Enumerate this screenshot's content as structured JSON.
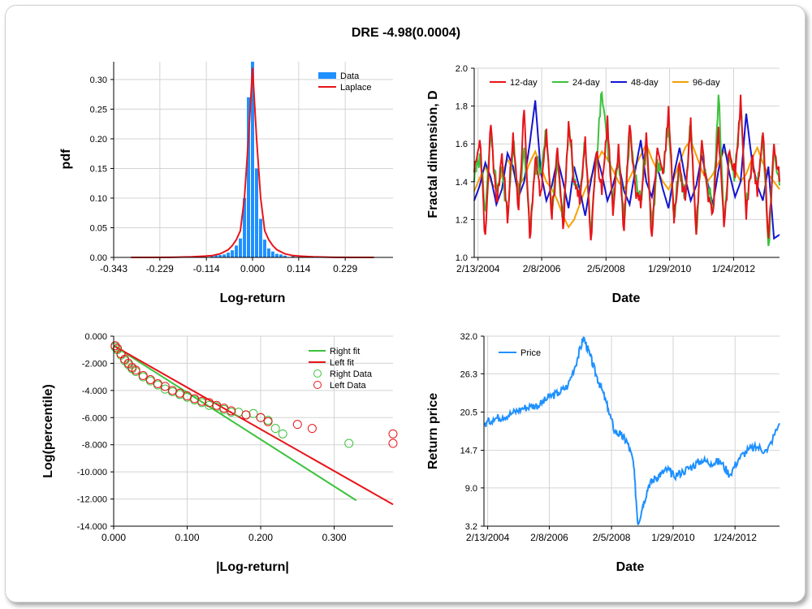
{
  "title": "DRE -4.98(0.0004)",
  "colors": {
    "grid": "#d3d3d3",
    "bar": "#1e90ff",
    "laplace": "#e8141a",
    "s12": "#e8141a",
    "s24": "#3cc23c",
    "s48": "#1414d2",
    "s96": "#f5a000",
    "right": "#3cc23c",
    "left": "#e8141a",
    "price": "#1e90ff"
  },
  "chart_data": [
    {
      "type": "bar",
      "ylabel": "pdf",
      "xlabel": "Log-return",
      "xlim": [
        -0.343,
        0.343
      ],
      "ylim": [
        0,
        0.33
      ],
      "xticks": [
        "-0.343",
        "-0.229",
        "-0.114",
        "0.000",
        "0.114",
        "0.229"
      ],
      "yticks": [
        "0.00",
        "0.05",
        "0.10",
        "0.15",
        "0.20",
        "0.25",
        "0.30"
      ],
      "legend": [
        "Data",
        "Laplace"
      ],
      "legend_position": "top-right",
      "series": [
        {
          "name": "Data",
          "x": [
            -0.2,
            -0.18,
            -0.16,
            -0.14,
            -0.12,
            -0.1,
            -0.09,
            -0.08,
            -0.07,
            -0.06,
            -0.05,
            -0.04,
            -0.03,
            -0.02,
            -0.01,
            0.0,
            0.01,
            0.02,
            0.03,
            0.04,
            0.05,
            0.06,
            0.07,
            0.08,
            0.1,
            0.12,
            0.14,
            0.16,
            0.2
          ],
          "values": [
            0.001,
            0.001,
            0.001,
            0.002,
            0.002,
            0.003,
            0.004,
            0.004,
            0.005,
            0.008,
            0.012,
            0.02,
            0.032,
            0.1,
            0.27,
            0.33,
            0.15,
            0.065,
            0.03,
            0.015,
            0.01,
            0.006,
            0.005,
            0.003,
            0.002,
            0.002,
            0.001,
            0.001,
            0.001
          ]
        },
        {
          "name": "Laplace",
          "x": [
            -0.3,
            -0.25,
            -0.2,
            -0.15,
            -0.12,
            -0.1,
            -0.08,
            -0.06,
            -0.05,
            -0.04,
            -0.03,
            -0.02,
            -0.01,
            0.0,
            0.01,
            0.02,
            0.03,
            0.04,
            0.05,
            0.06,
            0.08,
            0.1,
            0.12,
            0.15,
            0.2,
            0.25,
            0.3
          ],
          "values": [
            0.0,
            0.0,
            0.0002,
            0.001,
            0.002,
            0.003,
            0.006,
            0.013,
            0.02,
            0.03,
            0.045,
            0.1,
            0.2,
            0.32,
            0.2,
            0.1,
            0.045,
            0.03,
            0.02,
            0.013,
            0.006,
            0.003,
            0.002,
            0.001,
            0.0002,
            0.0,
            0.0
          ]
        }
      ]
    },
    {
      "type": "line",
      "ylabel": "Fractal dimension, D",
      "xlabel": "Date",
      "xlim": [
        2004.0,
        2013.5
      ],
      "ylim": [
        1.0,
        2.0
      ],
      "xticks": [
        "2/13/2004",
        "2/8/2006",
        "2/5/2008",
        "1/29/2010",
        "1/24/2012"
      ],
      "xtick_positions": [
        2004.12,
        2006.1,
        2008.1,
        2010.08,
        2012.07
      ],
      "yticks": [
        "1.0",
        "1.2",
        "1.4",
        "1.6",
        "1.8",
        "2.0"
      ],
      "legend": [
        "12-day",
        "24-day",
        "48-day",
        "96-day"
      ],
      "legend_position": "top-left",
      "series": [
        {
          "name": "12-day",
          "values": [
            1.45,
            1.62,
            1.12,
            1.7,
            1.3,
            1.55,
            1.18,
            1.66,
            1.25,
            1.78,
            1.1,
            1.52,
            1.35,
            1.68,
            1.2,
            1.58,
            1.15,
            1.72,
            1.4,
            1.28,
            1.64,
            1.09,
            1.55,
            1.33,
            1.75,
            1.22,
            1.6,
            1.14,
            1.7,
            1.38,
            1.26,
            1.66,
            1.11,
            1.58,
            1.44,
            1.8,
            1.18,
            1.5,
            1.3,
            1.74,
            1.12,
            1.62,
            1.36,
            1.24,
            1.69,
            1.16,
            1.56,
            1.42,
            1.86,
            1.2,
            1.52,
            1.32,
            1.66,
            1.1,
            1.6,
            1.4
          ]
        },
        {
          "name": "24-day",
          "values": [
            1.4,
            1.55,
            1.25,
            1.68,
            1.35,
            1.48,
            1.22,
            1.62,
            1.3,
            1.58,
            1.16,
            1.5,
            1.45,
            1.66,
            1.24,
            1.52,
            1.2,
            1.7,
            1.38,
            1.32,
            1.6,
            1.15,
            1.5,
            1.87,
            1.62,
            1.28,
            1.55,
            1.18,
            1.66,
            1.42,
            1.3,
            1.6,
            1.14,
            1.52,
            1.46,
            1.72,
            1.22,
            1.48,
            1.34,
            1.7,
            1.12,
            1.58,
            1.4,
            1.26,
            1.86,
            1.2,
            1.52,
            1.44,
            1.8,
            1.24,
            1.5,
            1.36,
            1.62,
            1.06,
            1.56,
            1.38
          ]
        },
        {
          "name": "48-day",
          "values": [
            1.3,
            1.38,
            1.5,
            1.42,
            1.28,
            1.36,
            1.55,
            1.48,
            1.32,
            1.4,
            1.6,
            1.83,
            1.45,
            1.3,
            1.38,
            1.52,
            1.4,
            1.26,
            1.48,
            1.36,
            1.22,
            1.4,
            1.55,
            1.44,
            1.3,
            1.38,
            1.5,
            1.35,
            1.28,
            1.46,
            1.62,
            1.4,
            1.32,
            1.48,
            1.36,
            1.26,
            1.44,
            1.58,
            1.42,
            1.3,
            1.38,
            1.54,
            1.4,
            1.28,
            1.46,
            1.6,
            1.44,
            1.32,
            1.4,
            1.76,
            1.52,
            1.38,
            1.3,
            1.48,
            1.1,
            1.12
          ]
        },
        {
          "name": "96-day",
          "values": [
            1.35,
            1.42,
            1.48,
            1.4,
            1.36,
            1.44,
            1.52,
            1.46,
            1.38,
            1.42,
            1.5,
            1.56,
            1.48,
            1.4,
            1.36,
            1.3,
            1.22,
            1.16,
            1.2,
            1.28,
            1.36,
            1.42,
            1.5,
            1.56,
            1.52,
            1.46,
            1.4,
            1.36,
            1.42,
            1.48,
            1.54,
            1.6,
            1.52,
            1.46,
            1.4,
            1.36,
            1.42,
            1.5,
            1.58,
            1.62,
            1.54,
            1.46,
            1.4,
            1.44,
            1.5,
            1.56,
            1.52,
            1.46,
            1.4,
            1.44,
            1.52,
            1.58,
            1.5,
            1.44,
            1.4,
            1.36
          ]
        }
      ]
    },
    {
      "type": "scatter",
      "ylabel": "Log(percentile)",
      "xlabel": "|Log-return|",
      "xlim": [
        0.0,
        0.38
      ],
      "ylim": [
        -14.0,
        0.0
      ],
      "xticks": [
        "0.000",
        "0.100",
        "0.200",
        "0.300"
      ],
      "yticks": [
        "0.000",
        "-2.000",
        "-4.000",
        "-6.000",
        "-8.000",
        "-10.000",
        "-12.000",
        "-14.000"
      ],
      "legend": [
        "Right fit",
        "Left fit",
        "Right Data",
        "Left Data"
      ],
      "legend_position": "top-right",
      "series": [
        {
          "name": "Right fit",
          "x": [
            0.0,
            0.33
          ],
          "values": [
            -0.7,
            -12.1
          ]
        },
        {
          "name": "Left fit",
          "x": [
            0.0,
            0.38
          ],
          "values": [
            -0.7,
            -12.4
          ]
        },
        {
          "name": "Right Data",
          "x": [
            0.002,
            0.005,
            0.01,
            0.015,
            0.02,
            0.025,
            0.03,
            0.04,
            0.05,
            0.06,
            0.07,
            0.08,
            0.09,
            0.1,
            0.11,
            0.12,
            0.13,
            0.14,
            0.15,
            0.16,
            0.17,
            0.18,
            0.19,
            0.2,
            0.21,
            0.22,
            0.23,
            0.32
          ],
          "values": [
            -0.8,
            -1.0,
            -1.4,
            -1.8,
            -2.1,
            -2.4,
            -2.6,
            -3.0,
            -3.3,
            -3.6,
            -3.9,
            -4.1,
            -4.3,
            -4.5,
            -4.7,
            -4.9,
            -5.1,
            -5.2,
            -5.4,
            -5.6,
            -5.6,
            -5.8,
            -5.7,
            -6.0,
            -6.2,
            -6.8,
            -7.2,
            -7.9
          ]
        },
        {
          "name": "Left Data",
          "x": [
            0.002,
            0.005,
            0.01,
            0.015,
            0.02,
            0.025,
            0.03,
            0.04,
            0.05,
            0.06,
            0.07,
            0.08,
            0.09,
            0.1,
            0.11,
            0.12,
            0.13,
            0.14,
            0.15,
            0.16,
            0.18,
            0.2,
            0.21,
            0.25,
            0.27,
            0.38,
            0.38
          ],
          "values": [
            -0.7,
            -0.9,
            -1.3,
            -1.7,
            -2.0,
            -2.3,
            -2.5,
            -2.9,
            -3.2,
            -3.5,
            -3.7,
            -4.0,
            -4.2,
            -4.4,
            -4.6,
            -4.8,
            -4.9,
            -5.1,
            -5.3,
            -5.5,
            -5.8,
            -6.0,
            -6.3,
            -6.5,
            -6.8,
            -7.2,
            -7.9
          ]
        }
      ]
    },
    {
      "type": "line",
      "ylabel": "Return price",
      "xlabel": "Date",
      "xlim": [
        2004.0,
        2013.5
      ],
      "ylim": [
        3.2,
        32.0
      ],
      "xticks": [
        "2/13/2004",
        "2/8/2006",
        "2/5/2008",
        "1/29/2010",
        "1/24/2012"
      ],
      "xtick_positions": [
        2004.12,
        2006.1,
        2008.1,
        2010.08,
        2012.07
      ],
      "yticks": [
        "3.2",
        "9.0",
        "14.7",
        "20.5",
        "26.3",
        "32.0"
      ],
      "legend": [
        "Price"
      ],
      "legend_position": "top-left",
      "series": [
        {
          "name": "Price",
          "x": [
            2004.0,
            2004.3,
            2004.6,
            2004.9,
            2005.2,
            2005.5,
            2005.8,
            2006.1,
            2006.4,
            2006.7,
            2007.0,
            2007.2,
            2007.4,
            2007.6,
            2007.8,
            2008.0,
            2008.2,
            2008.4,
            2008.6,
            2008.8,
            2008.95,
            2009.1,
            2009.3,
            2009.5,
            2009.7,
            2009.9,
            2010.1,
            2010.4,
            2010.7,
            2011.0,
            2011.3,
            2011.6,
            2011.9,
            2012.2,
            2012.5,
            2012.8,
            2013.1,
            2013.5
          ],
          "values": [
            18.6,
            19.5,
            19.8,
            20.3,
            21.0,
            21.4,
            21.6,
            22.8,
            23.4,
            24.5,
            28.5,
            31.8,
            29.2,
            26.2,
            23.8,
            20.8,
            17.6,
            17.0,
            16.0,
            13.0,
            3.5,
            6.2,
            9.5,
            10.5,
            11.2,
            11.8,
            10.8,
            11.5,
            12.3,
            13.2,
            12.8,
            13.0,
            11.0,
            13.5,
            14.8,
            15.2,
            14.5,
            18.8
          ]
        }
      ]
    }
  ]
}
